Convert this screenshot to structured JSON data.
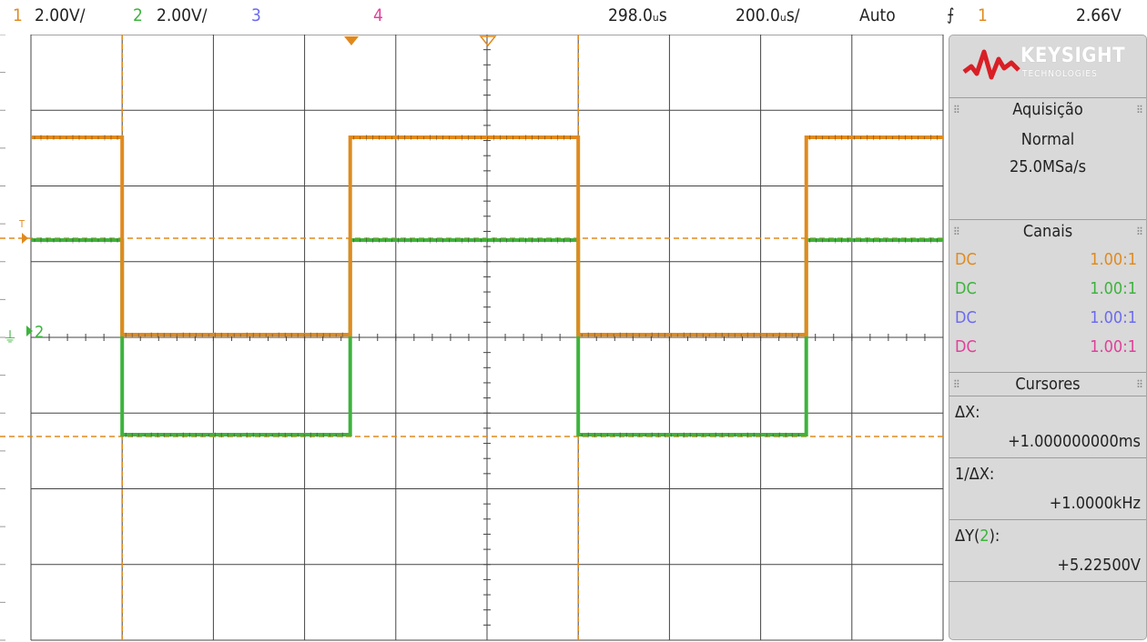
{
  "topbar": {
    "ch1_num": "1",
    "ch1_scale": "2.00V/",
    "ch2_num": "2",
    "ch2_scale": "2.00V/",
    "ch3_num": "3",
    "ch4_num": "4",
    "time_delay": "298.0ᵤs",
    "time_scale": "200.0ᵤs/",
    "trigger_mode": "Auto",
    "trigger_source": "1",
    "trigger_level": "2.66V"
  },
  "colors": {
    "ch1": "#e08a1e",
    "ch2": "#3db33d",
    "ch3": "#6b6bf0",
    "ch4": "#e0409a"
  },
  "screen": {
    "trigger_marker": "T",
    "ch2_marker": "2",
    "ground_marker": "⏚"
  },
  "panel": {
    "logo_brand": "KEYSIGHT",
    "logo_sub": "TECHNOLOGIES",
    "acquisition_title": "Aquisição",
    "acquisition_mode": "Normal",
    "sample_rate": "25.0MSa/s",
    "channels_title": "Canais",
    "channels": [
      {
        "coupling": "DC",
        "probe": "1.00:1",
        "color": "#e08a1e"
      },
      {
        "coupling": "DC",
        "probe": "1.00:1",
        "color": "#3db33d"
      },
      {
        "coupling": "DC",
        "probe": "1.00:1",
        "color": "#6b6bf0"
      },
      {
        "coupling": "DC",
        "probe": "1.00:1",
        "color": "#e0409a"
      }
    ],
    "cursors_title": "Cursores",
    "dx_label": "ΔX:",
    "dx_value": "+1.000000000ms",
    "inv_dx_label": "1/ΔX:",
    "inv_dx_value": "+1.0000kHz",
    "dy_label_prefix": "ΔY(",
    "dy_label_channel": "2",
    "dy_label_suffix": "):",
    "dy_value": "+5.22500V"
  }
}
